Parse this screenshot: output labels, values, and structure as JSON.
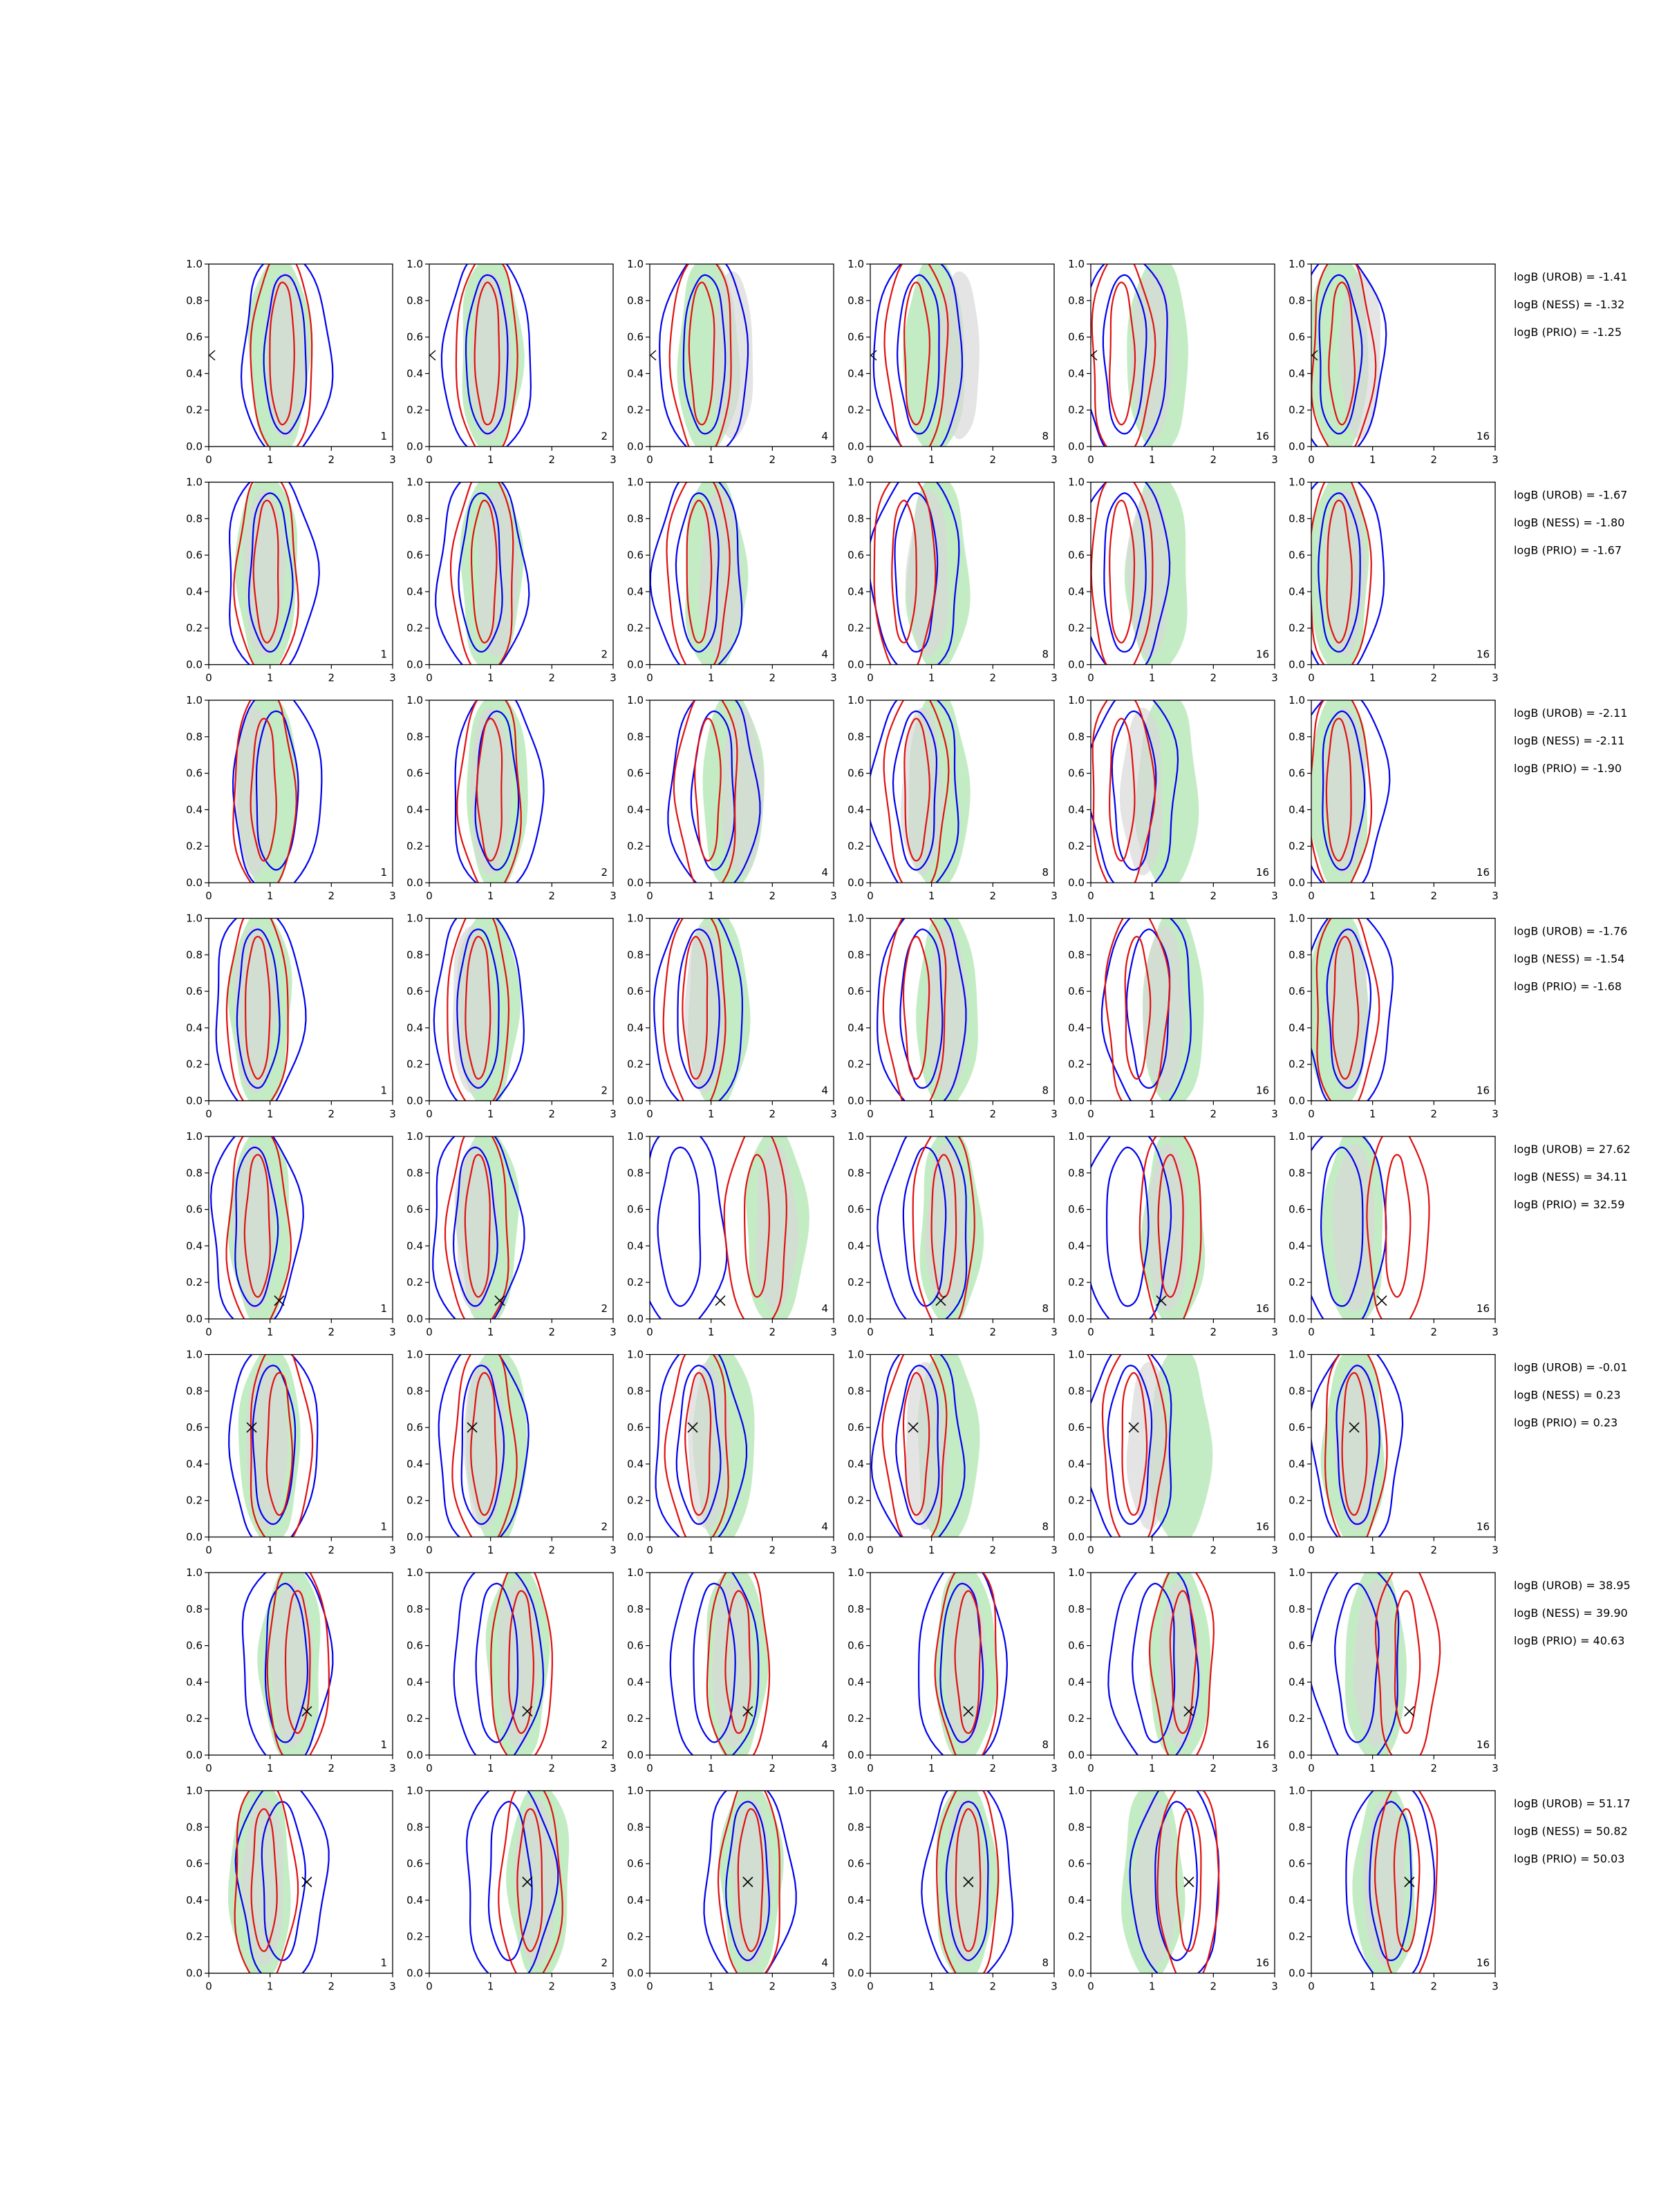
{
  "chart_data": {
    "type": "contour",
    "grid": false,
    "xlim": [
      0,
      3
    ],
    "ylim": [
      0,
      1
    ],
    "xticks": [
      "0",
      "1",
      "2",
      "3"
    ],
    "yticks": [
      "0.0",
      "0.2",
      "0.4",
      "0.6",
      "0.8",
      "1.0"
    ],
    "colors": {
      "green_fill": "#c4ecc4",
      "gray_fill": "#d9d9d9",
      "blue_line": "#0000ee",
      "red_line": "#e01010",
      "marker": "#000000"
    },
    "rows": [
      {
        "panel_labels": [
          "1",
          "2",
          "4",
          "8",
          "16",
          "16"
        ],
        "marker": [
          0.0,
          0.5
        ],
        "marker_style": "triangle",
        "logB": [
          "logB (UROB) = -1.41",
          "logB (NESS) = -1.32",
          "logB (PRIO) = -1.25"
        ],
        "green": [
          1.15,
          1.0,
          0.95,
          1.05,
          1.1,
          0.45
        ],
        "gray": [
          1.25,
          1.0,
          1.35,
          1.45,
          1.0,
          0.8
        ],
        "blue": [
          1.25,
          0.95,
          0.9,
          0.8,
          0.55,
          0.45
        ],
        "red": [
          1.2,
          0.95,
          0.85,
          0.75,
          0.5,
          0.5
        ]
      },
      {
        "panel_labels": [
          "1",
          "2",
          "4",
          "8",
          "16",
          "16"
        ],
        "marker": null,
        "marker_style": "none",
        "logB": [
          "logB (UROB) = -1.67",
          "logB (NESS) = -1.80",
          "logB (PRIO) = -1.67"
        ],
        "green": [
          0.95,
          1.0,
          1.05,
          1.1,
          1.1,
          0.45
        ],
        "gray": [
          0.9,
          1.1,
          1.15,
          0.95,
          0.95,
          0.55
        ],
        "blue": [
          1.0,
          0.85,
          0.8,
          0.75,
          0.55,
          0.45
        ],
        "red": [
          0.95,
          0.9,
          0.8,
          0.55,
          0.5,
          0.45
        ]
      },
      {
        "panel_labels": [
          "1",
          "2",
          "4",
          "8",
          "16",
          "16"
        ],
        "marker": null,
        "marker_style": "none",
        "logB": [
          "logB (UROB) = -2.11",
          "logB (NESS) = -2.11",
          "logB (PRIO) = -1.90"
        ],
        "green": [
          0.95,
          1.1,
          1.35,
          1.1,
          1.25,
          0.45
        ],
        "gray": [
          0.75,
          1.0,
          1.5,
          0.85,
          0.85,
          0.55
        ],
        "blue": [
          1.1,
          1.1,
          1.05,
          0.75,
          0.7,
          0.5
        ],
        "red": [
          0.9,
          1.0,
          0.95,
          0.75,
          0.5,
          0.45
        ]
      },
      {
        "panel_labels": [
          "1",
          "2",
          "4",
          "8",
          "16",
          "16"
        ],
        "marker": null,
        "marker_style": "none",
        "logB": [
          "logB (UROB) = -1.76",
          "logB (NESS) = -1.54",
          "logB (PRIO) = -1.68"
        ],
        "green": [
          0.85,
          0.95,
          1.1,
          1.25,
          1.35,
          0.45
        ],
        "gray": [
          0.75,
          0.7,
          0.9,
          1.25,
          1.2,
          0.6
        ],
        "blue": [
          0.8,
          0.8,
          0.8,
          0.85,
          0.95,
          0.6
        ],
        "red": [
          0.8,
          0.8,
          0.75,
          0.75,
          0.75,
          0.55
        ]
      },
      {
        "panel_labels": [
          "1",
          "2",
          "4",
          "8",
          "16",
          "16"
        ],
        "marker": [
          1.15,
          0.1
        ],
        "marker_style": "x",
        "logB": [
          "logB (UROB) = 27.62",
          "logB (NESS) = 34.11",
          "logB (PRIO) = 32.59"
        ],
        "green": [
          0.85,
          0.95,
          2.05,
          1.3,
          1.35,
          0.7
        ],
        "gray": [
          0.75,
          0.75,
          2.05,
          1.25,
          1.25,
          0.7
        ],
        "blue": [
          0.75,
          0.75,
          0.5,
          0.9,
          0.6,
          0.5
        ],
        "red": [
          0.8,
          0.8,
          1.75,
          1.2,
          1.3,
          1.4
        ]
      },
      {
        "panel_labels": [
          "1",
          "2",
          "4",
          "8",
          "16",
          "16"
        ],
        "marker": [
          0.7,
          0.6
        ],
        "marker_style": "x",
        "logB": [
          "logB (UROB) = -0.01",
          "logB (NESS) = 0.23",
          "logB (PRIO) = 0.23"
        ],
        "green": [
          1.0,
          1.1,
          1.2,
          1.25,
          1.45,
          0.7
        ],
        "gray": [
          0.95,
          0.9,
          0.95,
          0.9,
          0.95,
          0.75
        ],
        "blue": [
          1.05,
          0.85,
          0.8,
          0.8,
          0.65,
          0.75
        ],
        "red": [
          1.15,
          0.9,
          0.8,
          0.75,
          0.7,
          0.7
        ]
      },
      {
        "panel_labels": [
          "1",
          "2",
          "4",
          "8",
          "16",
          "16"
        ],
        "marker": [
          1.6,
          0.24
        ],
        "marker_style": "x",
        "logB": [
          "logB (UROB) = 38.95",
          "logB (NESS) = 39.90",
          "logB (PRIO) = 40.63"
        ],
        "green": [
          1.35,
          1.45,
          1.4,
          1.55,
          1.45,
          1.05
        ],
        "gray": [
          1.35,
          1.45,
          1.35,
          1.55,
          1.45,
          1.05
        ],
        "blue": [
          1.25,
          1.1,
          1.05,
          1.5,
          1.05,
          0.75
        ],
        "red": [
          1.45,
          1.5,
          1.45,
          1.6,
          1.5,
          1.55
        ]
      },
      {
        "panel_labels": [
          "1",
          "2",
          "4",
          "8",
          "16",
          "16"
        ],
        "marker": [
          1.6,
          0.5
        ],
        "marker_style": "x",
        "logB": [
          "logB (UROB) = 51.17",
          "logB (NESS) = 50.82",
          "logB (PRIO) = 50.03"
        ],
        "green": [
          0.85,
          1.8,
          1.65,
          1.55,
          1.0,
          1.2
        ],
        "gray": [
          0.9,
          1.75,
          1.65,
          1.55,
          1.05,
          1.2
        ],
        "blue": [
          1.2,
          1.3,
          1.6,
          1.6,
          1.4,
          1.3
        ],
        "red": [
          0.9,
          1.65,
          1.65,
          1.6,
          1.6,
          1.55
        ]
      }
    ]
  }
}
